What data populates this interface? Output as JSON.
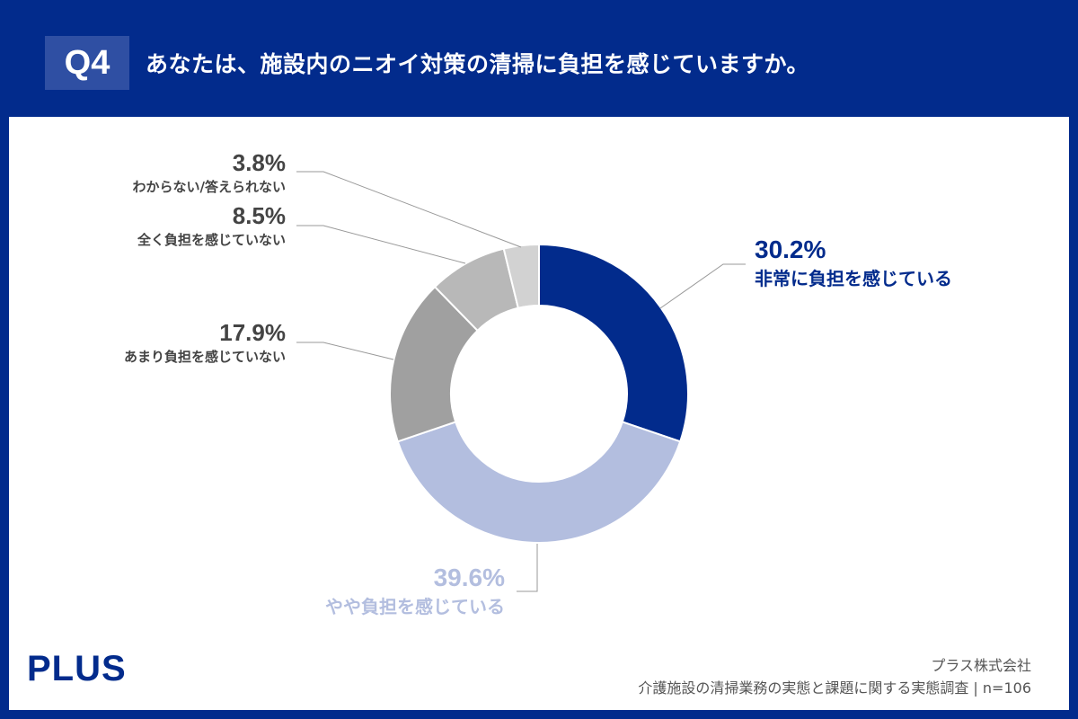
{
  "header": {
    "question_no": "Q4",
    "title": "あなたは、施設内のニオイ対策の清掃に負担を感じていますか。"
  },
  "chart_data": {
    "type": "pie",
    "donut": true,
    "title": "あなたは、施設内のニオイ対策の清掃に負担を感じていますか。",
    "categories": [
      "非常に負担を感じている",
      "やや負担を感じている",
      "あまり負担を感じていない",
      "全く負担を感じていない",
      "わからない/答えられない"
    ],
    "values": [
      30.2,
      39.6,
      17.9,
      8.5,
      3.8
    ],
    "value_labels": [
      "30.2%",
      "39.6%",
      "17.9%",
      "8.5%",
      "3.8%"
    ],
    "colors": [
      "#022b8c",
      "#b3bedf",
      "#a0a0a0",
      "#b8b8b8",
      "#d2d2d2"
    ],
    "start": "top",
    "direction": "clockwise"
  },
  "footer": {
    "logo": "PLUS",
    "company": "プラス株式会社",
    "survey": "介護施設の清掃業務の実態と課題に関する実態調査 | n=106"
  }
}
